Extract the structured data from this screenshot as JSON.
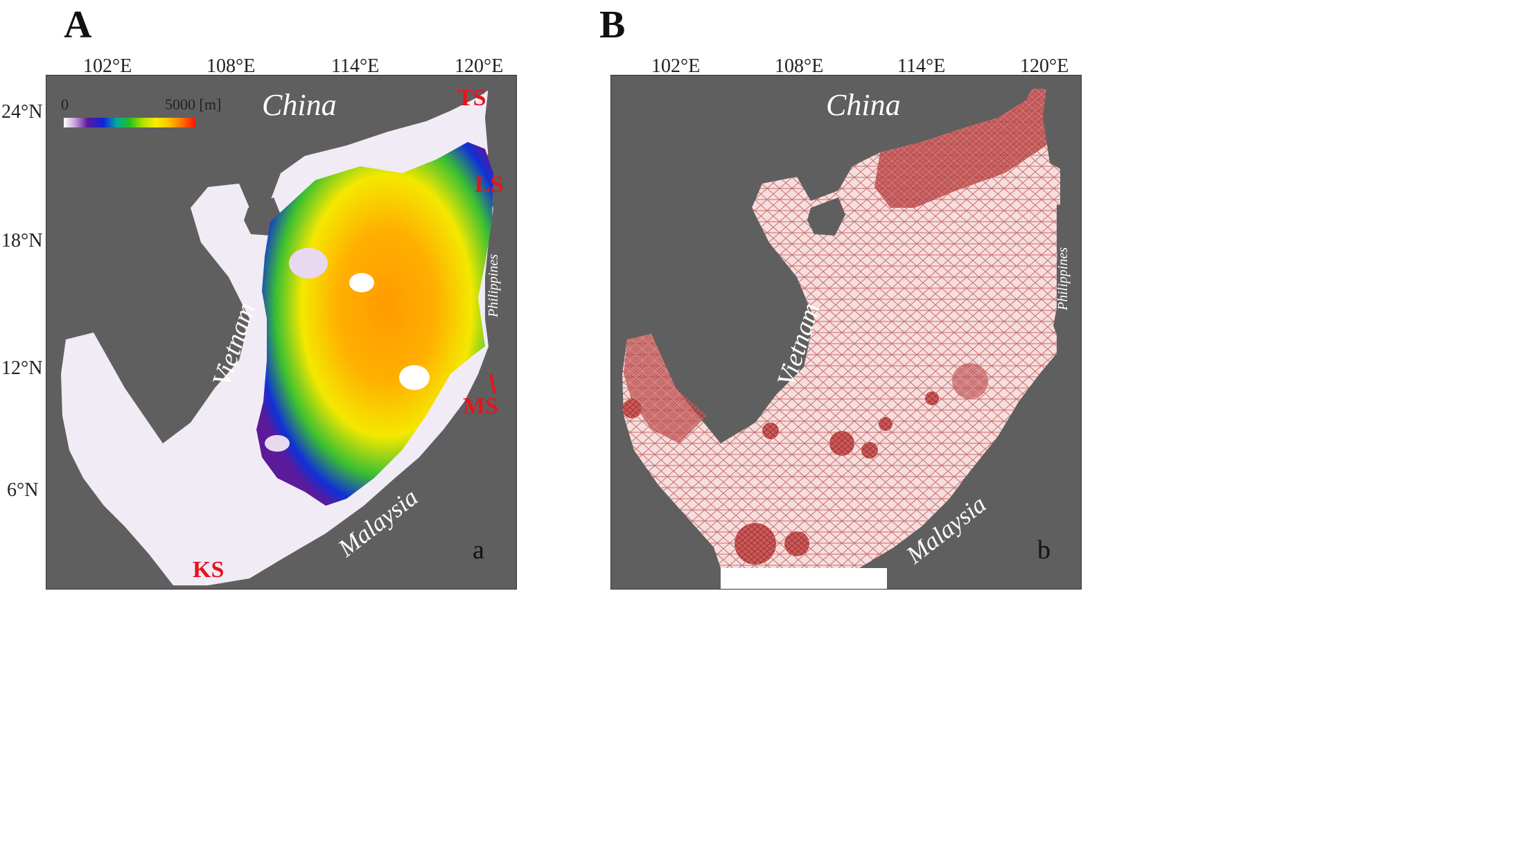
{
  "panels": [
    {
      "letter": "A",
      "sublabel": "a"
    },
    {
      "letter": "B",
      "sublabel": "b"
    }
  ],
  "axes": {
    "lon_ticks": [
      "102°E",
      "108°E",
      "114°E",
      "120°E"
    ],
    "lat_ticks": [
      "24°N",
      "18°N",
      "12°N",
      "6°N"
    ]
  },
  "colorbar": {
    "min_label": "0",
    "max_label": "5000 [m]",
    "colors": [
      "#ffffff",
      "#c9a9de",
      "#5a1a9a",
      "#1020e0",
      "#00a8a0",
      "#20c020",
      "#b0e000",
      "#f8f000",
      "#ffc000",
      "#ff7000",
      "#ff1000"
    ]
  },
  "regions": {
    "china": "China",
    "vietnam": "Vietnam",
    "philippines": "Philippines",
    "malaysia": "Malaysia"
  },
  "straits": {
    "ts": "TS",
    "ls": "LS",
    "ms": "MS",
    "ks": "KS"
  },
  "colors": {
    "land": "#5f5f5f",
    "shelf": "#f1ebf6",
    "mesh": "#c86b6b",
    "mesh_dense": "#9a2424",
    "strait_label": "#e6141e"
  }
}
